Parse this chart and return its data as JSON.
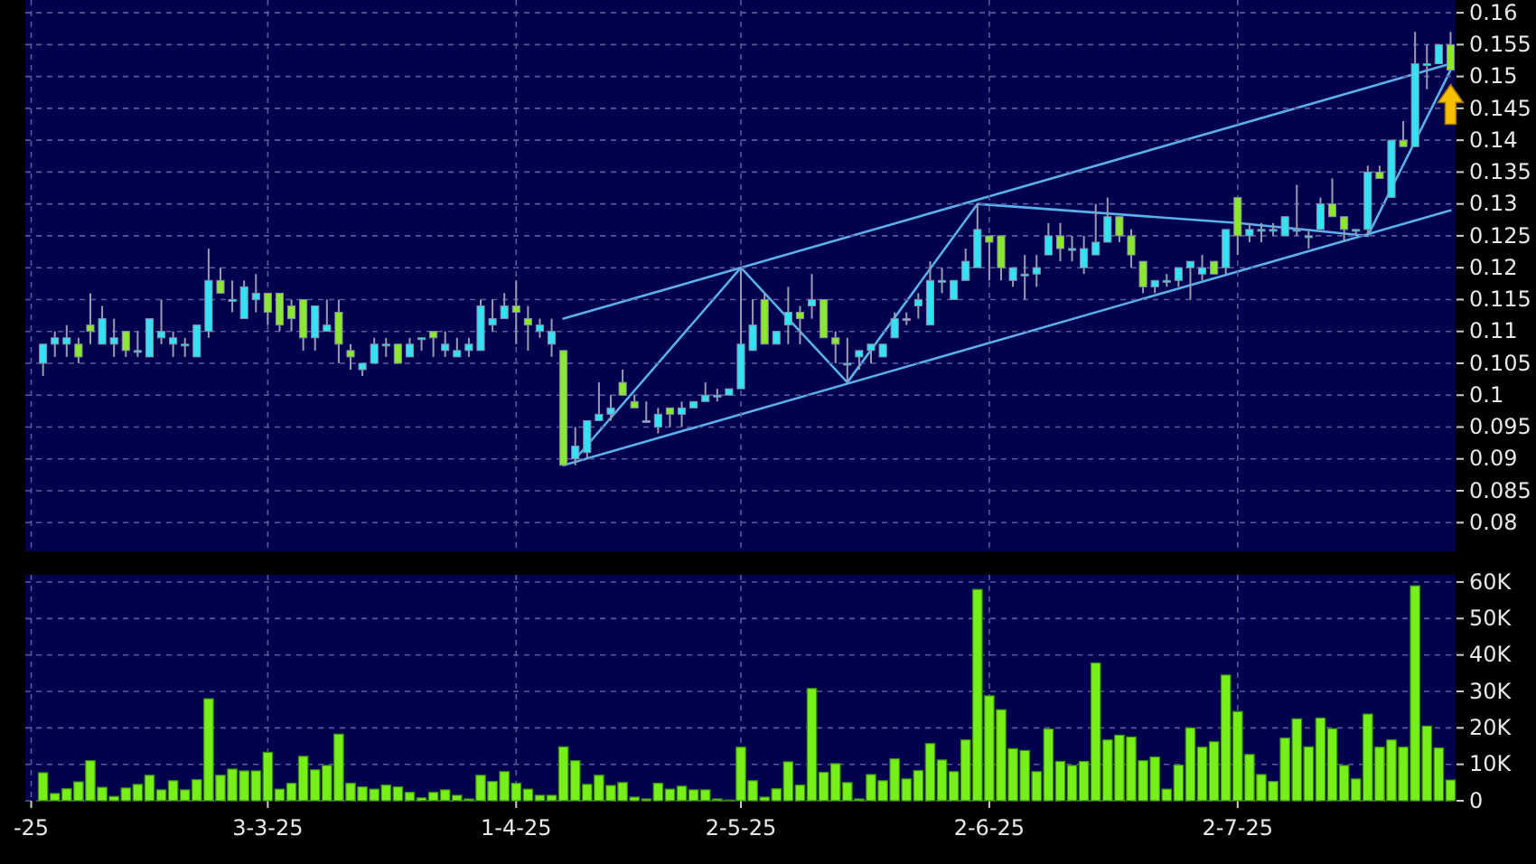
{
  "chart_data": [
    {
      "type": "candlestick",
      "tick_labels": "y",
      "grid": true,
      "categories": [
        null,
        null,
        null,
        null,
        null,
        null,
        null,
        null,
        null,
        null,
        null,
        null,
        null,
        null,
        null,
        null,
        null,
        null,
        null,
        null,
        null,
        null,
        null,
        null,
        null,
        null,
        null,
        null,
        null,
        null,
        null,
        null,
        null,
        null,
        null,
        null,
        null,
        null,
        null,
        null,
        null,
        null,
        null,
        null,
        null,
        null,
        null,
        null,
        null,
        null,
        null,
        null,
        null,
        null,
        null,
        null,
        null,
        null,
        null,
        null,
        null,
        null,
        null,
        null,
        null,
        null,
        null,
        null,
        null,
        null,
        null,
        null,
        null,
        null,
        null,
        null,
        null,
        null,
        null,
        null,
        null,
        null,
        null,
        null,
        null,
        null,
        null,
        null,
        null,
        null,
        null,
        null,
        null,
        null,
        null,
        null,
        null,
        null,
        null,
        null,
        null,
        null,
        null,
        null,
        null,
        null,
        null,
        null,
        null,
        null,
        null,
        null,
        null,
        null,
        null,
        null,
        null,
        null,
        null,
        null,
        null
      ],
      "ylim": [
        0.0755,
        0.162
      ],
      "yticks": [
        0.08,
        0.085,
        0.09,
        0.095,
        0.1,
        0.105,
        0.11,
        0.115,
        0.12,
        0.125,
        0.13,
        0.135,
        0.14,
        0.145,
        0.15,
        0.155,
        0.16
      ],
      "ohlc": [
        null,
        [
          0.105,
          0.108,
          0.103,
          0.108
        ],
        [
          0.108,
          0.11,
          0.106,
          0.109
        ],
        [
          0.108,
          0.111,
          0.106,
          0.109
        ],
        [
          0.108,
          0.109,
          0.105,
          0.106
        ],
        [
          0.111,
          0.116,
          0.108,
          0.11
        ],
        [
          0.108,
          0.114,
          0.108,
          0.112
        ],
        [
          0.108,
          0.112,
          0.106,
          0.109
        ],
        [
          0.11,
          0.11,
          0.106,
          0.107
        ],
        [
          0.107,
          0.11,
          0.106,
          0.107
        ],
        [
          0.106,
          0.112,
          0.106,
          0.112
        ],
        [
          0.109,
          0.115,
          0.108,
          0.11
        ],
        [
          0.108,
          0.11,
          0.106,
          0.109
        ],
        [
          0.108,
          0.109,
          0.106,
          0.108
        ],
        [
          0.106,
          0.111,
          0.106,
          0.111
        ],
        [
          0.11,
          0.123,
          0.109,
          0.118
        ],
        [
          0.118,
          0.12,
          0.116,
          0.116
        ],
        [
          0.115,
          0.118,
          0.113,
          0.115
        ],
        [
          0.112,
          0.118,
          0.112,
          0.117
        ],
        [
          0.115,
          0.119,
          0.113,
          0.116
        ],
        [
          0.116,
          0.116,
          0.111,
          0.113
        ],
        [
          0.116,
          0.116,
          0.11,
          0.111
        ],
        [
          0.114,
          0.115,
          0.11,
          0.112
        ],
        [
          0.115,
          0.115,
          0.107,
          0.109
        ],
        [
          0.109,
          0.114,
          0.107,
          0.114
        ],
        [
          0.11,
          0.115,
          0.11,
          0.111
        ],
        [
          0.113,
          0.115,
          0.105,
          0.108
        ],
        [
          0.107,
          0.108,
          0.104,
          0.106
        ],
        [
          0.104,
          0.105,
          0.103,
          0.105
        ],
        [
          0.105,
          0.109,
          0.105,
          0.108
        ],
        [
          0.108,
          0.109,
          0.106,
          0.108
        ],
        [
          0.108,
          0.108,
          0.105,
          0.105
        ],
        [
          0.106,
          0.109,
          0.106,
          0.108
        ],
        [
          0.109,
          0.109,
          0.107,
          0.109
        ],
        [
          0.11,
          0.11,
          0.106,
          0.109
        ],
        [
          0.107,
          0.11,
          0.106,
          0.108
        ],
        [
          0.106,
          0.109,
          0.106,
          0.107
        ],
        [
          0.107,
          0.109,
          0.106,
          0.108
        ],
        [
          0.107,
          0.115,
          0.107,
          0.114
        ],
        [
          0.111,
          0.115,
          0.11,
          0.112
        ],
        [
          0.112,
          0.116,
          0.112,
          0.114
        ],
        [
          0.114,
          0.118,
          0.108,
          0.113
        ],
        [
          0.112,
          0.114,
          0.107,
          0.111
        ],
        [
          0.11,
          0.112,
          0.109,
          0.111
        ],
        [
          0.108,
          0.112,
          0.106,
          0.11
        ],
        [
          0.107,
          0.107,
          0.089,
          0.089
        ],
        [
          0.09,
          0.095,
          0.089,
          0.092
        ],
        [
          0.091,
          0.096,
          0.09,
          0.096
        ],
        [
          0.096,
          0.102,
          0.096,
          0.097
        ],
        [
          0.097,
          0.1,
          0.096,
          0.098
        ],
        [
          0.102,
          0.104,
          0.1,
          0.1
        ],
        [
          0.099,
          0.1,
          0.098,
          0.098
        ],
        [
          0.096,
          0.099,
          0.096,
          0.096
        ],
        [
          0.095,
          0.098,
          0.094,
          0.097
        ],
        [
          0.098,
          0.098,
          0.095,
          0.097
        ],
        [
          0.097,
          0.099,
          0.095,
          0.098
        ],
        [
          0.098,
          0.099,
          0.098,
          0.099
        ],
        [
          0.099,
          0.102,
          0.099,
          0.1
        ],
        [
          0.1,
          0.101,
          0.099,
          0.1
        ],
        [
          0.1,
          0.101,
          0.1,
          0.101
        ],
        [
          0.101,
          0.12,
          0.101,
          0.108
        ],
        [
          0.107,
          0.115,
          0.107,
          0.111
        ],
        [
          0.115,
          0.116,
          0.108,
          0.108
        ],
        [
          0.108,
          0.11,
          0.108,
          0.11
        ],
        [
          0.111,
          0.117,
          0.108,
          0.113
        ],
        [
          0.113,
          0.114,
          0.108,
          0.112
        ],
        [
          0.114,
          0.119,
          0.112,
          0.115
        ],
        [
          0.115,
          0.115,
          0.109,
          0.109
        ],
        [
          0.109,
          0.11,
          0.105,
          0.108
        ],
        [
          0.105,
          0.109,
          0.102,
          0.105
        ],
        [
          0.106,
          0.107,
          0.104,
          0.107
        ],
        [
          0.107,
          0.108,
          0.105,
          0.108
        ],
        [
          0.106,
          0.108,
          0.106,
          0.108
        ],
        [
          0.109,
          0.113,
          0.109,
          0.112
        ],
        [
          0.112,
          0.113,
          0.111,
          0.112
        ],
        [
          0.114,
          0.116,
          0.112,
          0.115
        ],
        [
          0.111,
          0.121,
          0.111,
          0.118
        ],
        [
          0.118,
          0.12,
          0.116,
          0.118
        ],
        [
          0.115,
          0.118,
          0.115,
          0.118
        ],
        [
          0.118,
          0.123,
          0.118,
          0.121
        ],
        [
          0.12,
          0.13,
          0.12,
          0.126
        ],
        [
          0.125,
          0.125,
          0.118,
          0.124
        ],
        [
          0.125,
          0.125,
          0.118,
          0.12
        ],
        [
          0.118,
          0.12,
          0.117,
          0.12
        ],
        [
          0.119,
          0.122,
          0.115,
          0.119
        ],
        [
          0.119,
          0.122,
          0.117,
          0.12
        ],
        [
          0.122,
          0.127,
          0.122,
          0.125
        ],
        [
          0.125,
          0.127,
          0.121,
          0.123
        ],
        [
          0.123,
          0.125,
          0.121,
          0.123
        ],
        [
          0.12,
          0.125,
          0.119,
          0.123
        ],
        [
          0.122,
          0.13,
          0.122,
          0.124
        ],
        [
          0.124,
          0.131,
          0.124,
          0.128
        ],
        [
          0.128,
          0.128,
          0.124,
          0.125
        ],
        [
          0.125,
          0.126,
          0.12,
          0.122
        ],
        [
          0.121,
          0.121,
          0.116,
          0.117
        ],
        [
          0.117,
          0.118,
          0.116,
          0.118
        ],
        [
          0.118,
          0.119,
          0.117,
          0.118
        ],
        [
          0.118,
          0.12,
          0.117,
          0.12
        ],
        [
          0.12,
          0.121,
          0.115,
          0.121
        ],
        [
          0.119,
          0.122,
          0.118,
          0.12
        ],
        [
          0.121,
          0.121,
          0.119,
          0.119
        ],
        [
          0.12,
          0.126,
          0.119,
          0.126
        ],
        [
          0.131,
          0.131,
          0.122,
          0.125
        ],
        [
          0.125,
          0.127,
          0.124,
          0.126
        ],
        [
          0.126,
          0.127,
          0.124,
          0.126
        ],
        [
          0.126,
          0.127,
          0.125,
          0.126
        ],
        [
          0.125,
          0.128,
          0.125,
          0.128
        ],
        [
          0.126,
          0.133,
          0.125,
          0.126
        ],
        [
          0.125,
          0.126,
          0.123,
          0.125
        ],
        [
          0.126,
          0.131,
          0.126,
          0.13
        ],
        [
          0.13,
          0.134,
          0.128,
          0.128
        ],
        [
          0.128,
          0.128,
          0.124,
          0.126
        ],
        [
          0.126,
          0.126,
          0.125,
          0.126
        ],
        [
          0.126,
          0.136,
          0.125,
          0.135
        ],
        [
          0.135,
          0.136,
          0.134,
          0.134
        ],
        [
          0.131,
          0.14,
          0.131,
          0.14
        ],
        [
          0.14,
          0.143,
          0.139,
          0.139
        ],
        [
          0.139,
          0.157,
          0.139,
          0.152
        ],
        [
          0.152,
          0.155,
          0.148,
          0.152
        ],
        [
          0.152,
          0.155,
          0.152,
          0.155
        ],
        [
          0.155,
          0.157,
          0.151,
          0.151
        ]
      ],
      "colors": [
        null,
        "#33e3f3",
        "#33e3f3",
        "#33e3f3",
        "#8be82c",
        "#8be82c",
        "#33e3f3",
        "#33e3f3",
        "#8be82c",
        "#33e3f3",
        "#33e3f3",
        "#33e3f3",
        "#33e3f3",
        "#33e3f3",
        "#33e3f3",
        "#33e3f3",
        "#8be82c",
        "#33e3f3",
        "#33e3f3",
        "#33e3f3",
        "#8be82c",
        "#8be82c",
        "#8be82c",
        "#8be82c",
        "#33e3f3",
        "#33e3f3",
        "#8be82c",
        "#8be82c",
        "#33e3f3",
        "#33e3f3",
        "#33e3f3",
        "#8be82c",
        "#33e3f3",
        "#33e3f3",
        "#8be82c",
        "#33e3f3",
        "#33e3f3",
        "#33e3f3",
        "#33e3f3",
        "#33e3f3",
        "#33e3f3",
        "#8be82c",
        "#8be82c",
        "#33e3f3",
        "#33e3f3",
        "#8be82c",
        "#33e3f3",
        "#33e3f3",
        "#33e3f3",
        "#33e3f3",
        "#8be82c",
        "#8be82c",
        "#33e3f3",
        "#33e3f3",
        "#8be82c",
        "#33e3f3",
        "#33e3f3",
        "#33e3f3",
        "#33e3f3",
        "#33e3f3",
        "#33e3f3",
        "#33e3f3",
        "#8be82c",
        "#33e3f3",
        "#33e3f3",
        "#8be82c",
        "#33e3f3",
        "#8be82c",
        "#8be82c",
        "#33e3f3",
        "#33e3f3",
        "#33e3f3",
        "#33e3f3",
        "#33e3f3",
        "#33e3f3",
        "#33e3f3",
        "#33e3f3",
        "#33e3f3",
        "#33e3f3",
        "#33e3f3",
        "#33e3f3",
        "#8be82c",
        "#8be82c",
        "#33e3f3",
        "#33e3f3",
        "#33e3f3",
        "#33e3f3",
        "#8be82c",
        "#33e3f3",
        "#33e3f3",
        "#33e3f3",
        "#33e3f3",
        "#8be82c",
        "#8be82c",
        "#8be82c",
        "#33e3f3",
        "#33e3f3",
        "#33e3f3",
        "#33e3f3",
        "#33e3f3",
        "#8be82c",
        "#33e3f3",
        "#8be82c",
        "#33e3f3",
        "#33e3f3",
        "#33e3f3",
        "#33e3f3",
        "#33e3f3",
        "#33e3f3",
        "#33e3f3",
        "#8be82c",
        "#8be82c",
        "#33e3f3",
        "#33e3f3",
        "#8be82c",
        "#33e3f3",
        "#8be82c",
        "#33e3f3",
        "#33e3f3",
        "#33e3f3",
        "#8be82c"
      ],
      "series": [
        {
          "type": "line",
          "color": "#5ab0ea",
          "values": [
            null,
            null,
            null,
            null,
            null,
            null,
            null,
            null,
            null,
            null,
            null,
            null,
            null,
            null,
            null,
            null,
            null,
            null,
            null,
            null,
            null,
            null,
            null,
            null,
            null,
            null,
            null,
            null,
            null,
            null,
            null,
            null,
            null,
            null,
            null,
            null,
            null,
            null,
            null,
            null,
            null,
            null,
            null,
            null,
            null,
            0.112,
            null,
            null,
            null,
            null,
            null,
            null,
            null,
            null,
            null,
            null,
            null,
            null,
            null,
            null,
            null,
            null,
            null,
            null,
            null,
            null,
            null,
            null,
            null,
            null,
            null,
            null,
            null,
            null,
            null,
            null,
            null,
            null,
            null,
            null,
            null,
            null,
            null,
            null,
            null,
            null,
            null,
            null,
            null,
            null,
            null,
            null,
            null,
            null,
            null,
            null,
            null,
            null,
            null,
            null,
            null,
            null,
            null,
            null,
            null,
            null,
            null,
            null,
            null,
            null,
            null,
            null,
            null,
            null,
            null,
            null,
            null,
            null,
            null,
            null,
            0.152
          ]
        },
        {
          "type": "line",
          "color": "#5ab0ea",
          "values": [
            null,
            null,
            null,
            null,
            null,
            null,
            null,
            null,
            null,
            null,
            null,
            null,
            null,
            null,
            null,
            null,
            null,
            null,
            null,
            null,
            null,
            null,
            null,
            null,
            null,
            null,
            null,
            null,
            null,
            null,
            null,
            null,
            null,
            null,
            null,
            null,
            null,
            null,
            null,
            null,
            null,
            null,
            null,
            null,
            null,
            0.089,
            null,
            null,
            null,
            null,
            null,
            null,
            null,
            null,
            null,
            null,
            null,
            null,
            null,
            null,
            null,
            null,
            null,
            null,
            null,
            null,
            null,
            null,
            null,
            null,
            null,
            null,
            null,
            null,
            null,
            null,
            null,
            null,
            null,
            null,
            null,
            null,
            null,
            null,
            null,
            null,
            null,
            null,
            null,
            null,
            null,
            null,
            null,
            null,
            null,
            null,
            null,
            null,
            null,
            null,
            null,
            null,
            null,
            null,
            null,
            null,
            null,
            null,
            null,
            null,
            null,
            null,
            null,
            null,
            null,
            null,
            null,
            null,
            null,
            null,
            0.129
          ]
        },
        {
          "type": "line",
          "color": "#5ab0ea",
          "values": [
            null,
            null,
            null,
            null,
            null,
            null,
            null,
            null,
            null,
            null,
            null,
            null,
            null,
            null,
            null,
            null,
            null,
            null,
            null,
            null,
            null,
            null,
            null,
            null,
            null,
            null,
            null,
            null,
            null,
            null,
            null,
            null,
            null,
            null,
            null,
            null,
            null,
            null,
            null,
            null,
            null,
            null,
            null,
            null,
            null,
            null,
            0.09,
            null,
            null,
            null,
            null,
            null,
            null,
            null,
            null,
            null,
            null,
            null,
            null,
            null,
            0.12,
            null,
            null,
            null,
            null,
            null,
            null,
            null,
            null,
            0.102,
            null,
            null,
            null,
            null,
            null,
            null,
            null,
            null,
            null,
            null,
            0.13,
            null,
            null,
            null,
            null,
            null,
            null,
            null,
            null,
            null,
            null,
            null,
            null,
            null,
            null,
            null,
            null,
            null,
            null,
            null,
            null,
            null,
            0.127,
            null,
            null,
            null,
            null,
            null,
            null,
            null,
            null,
            null,
            null,
            0.125,
            null,
            null,
            null,
            null,
            null,
            null,
            0.151
          ]
        }
      ]
    },
    {
      "type": "bar",
      "grid": true,
      "categories": [
        "-25",
        null,
        null,
        null,
        null,
        null,
        null,
        null,
        null,
        null,
        null,
        null,
        null,
        null,
        null,
        null,
        null,
        null,
        null,
        null,
        "3-3-25",
        null,
        null,
        null,
        null,
        null,
        null,
        null,
        null,
        null,
        null,
        null,
        null,
        null,
        null,
        null,
        null,
        null,
        null,
        null,
        null,
        "1-4-25",
        null,
        null,
        null,
        null,
        null,
        null,
        null,
        null,
        null,
        null,
        null,
        null,
        null,
        null,
        null,
        null,
        null,
        null,
        "2-5-25",
        null,
        null,
        null,
        null,
        null,
        null,
        null,
        null,
        null,
        null,
        null,
        null,
        null,
        null,
        null,
        null,
        null,
        null,
        null,
        null,
        "2-6-25",
        null,
        null,
        null,
        null,
        null,
        null,
        null,
        null,
        null,
        null,
        null,
        null,
        null,
        null,
        null,
        null,
        null,
        null,
        null,
        null,
        "2-7-25",
        null,
        null,
        null,
        null,
        null,
        null,
        null,
        null,
        null,
        null,
        null,
        null,
        null,
        null,
        null,
        null,
        null,
        null
      ],
      "ylim": [
        0,
        62000
      ],
      "yticks": [
        0,
        {
          "value": 10000,
          "label": "10K"
        },
        {
          "value": 20000,
          "label": "20K"
        },
        {
          "value": 30000,
          "label": "30K"
        },
        {
          "value": 40000,
          "label": "40K"
        },
        {
          "value": 50000,
          "label": "50K"
        },
        {
          "value": 60000,
          "label": "60K"
        }
      ],
      "series": [
        {
          "color": "#77f01a",
          "values": [
            null,
            7700,
            2000,
            3300,
            5200,
            11000,
            3700,
            1200,
            3500,
            4500,
            7000,
            3000,
            5500,
            3000,
            5800,
            28000,
            7000,
            8700,
            8200,
            8200,
            13300,
            3200,
            4800,
            12200,
            8500,
            9700,
            18300,
            4800,
            3800,
            3200,
            4300,
            3800,
            2300,
            800,
            2300,
            3000,
            1500,
            500,
            7000,
            5300,
            8000,
            4800,
            3200,
            1500,
            1500,
            14800,
            11000,
            4500,
            7000,
            4200,
            5000,
            1000,
            500,
            4800,
            3200,
            4000,
            3000,
            3000,
            500,
            200,
            14700,
            5500,
            1000,
            3300,
            10700,
            4300,
            30800,
            7800,
            10200,
            5000,
            500,
            7200,
            5500,
            11500,
            6000,
            8300,
            15700,
            11200,
            8000,
            16700,
            58000,
            28800,
            25000,
            14300,
            13800,
            8000,
            19700,
            10800,
            9700,
            10800,
            37800,
            16700,
            18000,
            17500,
            11000,
            12000,
            3200,
            9800,
            20000,
            14700,
            16200,
            34500,
            24500,
            12700,
            7200,
            5300,
            17200,
            22500,
            14800,
            22700,
            19800,
            9700,
            6000,
            23800,
            14700,
            16700,
            14700,
            59000,
            20500,
            14500,
            5700
          ]
        }
      ]
    }
  ]
}
